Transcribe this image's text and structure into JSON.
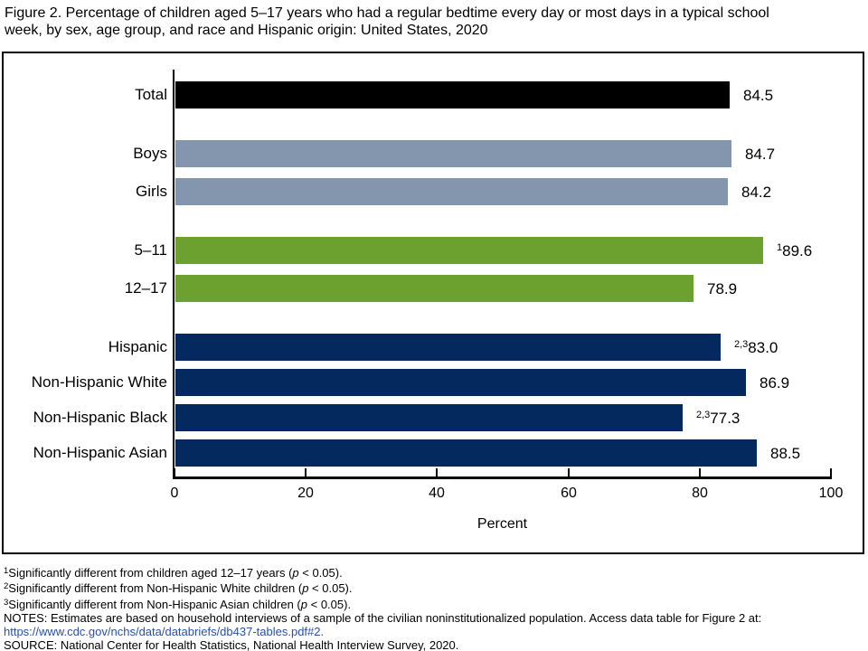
{
  "title": {
    "line1": "Figure 2. Percentage of children aged 5–17 years who had a regular bedtime every day or most days in a typical school",
    "line2": "week, by sex, age group, and race and Hispanic origin: United States, 2020"
  },
  "colors": {
    "black": "#000000",
    "slate": "#8496AE",
    "green": "#6CA02F",
    "navy": "#04295E",
    "link": "#2B51A3"
  },
  "chart_data": {
    "type": "bar",
    "orientation": "horizontal",
    "title": "Percentage of children aged 5–17 years who had a regular bedtime every day or most days in a typical school week, by sex, age group, and race and Hispanic origin: United States, 2020",
    "xlabel": "Percent",
    "xlim": [
      0,
      100
    ],
    "x_ticks": [
      0,
      20,
      40,
      60,
      80,
      100
    ],
    "grid": false,
    "bars": [
      {
        "label": "Total",
        "value": 84.5,
        "value_label": "84.5",
        "sup": "",
        "color": "black",
        "group": 0
      },
      {
        "label": "Boys",
        "value": 84.7,
        "value_label": "84.7",
        "sup": "",
        "color": "slate",
        "group": 1
      },
      {
        "label": "Girls",
        "value": 84.2,
        "value_label": "84.2",
        "sup": "",
        "color": "slate",
        "group": 1
      },
      {
        "label": "5–11",
        "value": 89.6,
        "value_label": "89.6",
        "sup": "1",
        "color": "green",
        "group": 2
      },
      {
        "label": "12–17",
        "value": 78.9,
        "value_label": "78.9",
        "sup": "",
        "color": "green",
        "group": 2
      },
      {
        "label": "Hispanic",
        "value": 83.0,
        "value_label": "83.0",
        "sup": "2,3",
        "color": "navy",
        "group": 3
      },
      {
        "label": "Non-Hispanic White",
        "value": 86.9,
        "value_label": "86.9",
        "sup": "",
        "color": "navy",
        "group": 3
      },
      {
        "label": "Non-Hispanic Black",
        "value": 77.3,
        "value_label": "77.3",
        "sup": "2,3",
        "color": "navy",
        "group": 3
      },
      {
        "label": "Non-Hispanic Asian",
        "value": 88.5,
        "value_label": "88.5",
        "sup": "",
        "color": "navy",
        "group": 3
      }
    ]
  },
  "footnotes": [
    {
      "link": false,
      "segments": [
        {
          "t": "1",
          "s": "sup"
        },
        {
          "t": "Significantly different from children aged 12–17 years (",
          "s": ""
        },
        {
          "t": "p",
          "s": "i"
        },
        {
          "t": " < 0.05).",
          "s": ""
        }
      ]
    },
    {
      "link": false,
      "segments": [
        {
          "t": "2",
          "s": "sup"
        },
        {
          "t": "Significantly different from Non-Hispanic White children (",
          "s": ""
        },
        {
          "t": "p",
          "s": "i"
        },
        {
          "t": " < 0.05).",
          "s": ""
        }
      ]
    },
    {
      "link": false,
      "segments": [
        {
          "t": "3",
          "s": "sup"
        },
        {
          "t": "Significantly different from Non-Hispanic Asian children (",
          "s": ""
        },
        {
          "t": "p",
          "s": "i"
        },
        {
          "t": " < 0.05).",
          "s": ""
        }
      ]
    },
    {
      "link": false,
      "segments": [
        {
          "t": "NOTES: Estimates are based on household interviews of a sample of the civilian noninstitutionalized population. Access data table for Figure 2 at:",
          "s": ""
        }
      ]
    },
    {
      "link": true,
      "segments": [
        {
          "t": "https://www.cdc.gov/nchs/data/databriefs/db437-tables.pdf#2.",
          "s": ""
        }
      ]
    },
    {
      "link": false,
      "segments": [
        {
          "t": "SOURCE: National Center for Health Statistics, National Health Interview Survey, 2020.",
          "s": ""
        }
      ]
    }
  ]
}
